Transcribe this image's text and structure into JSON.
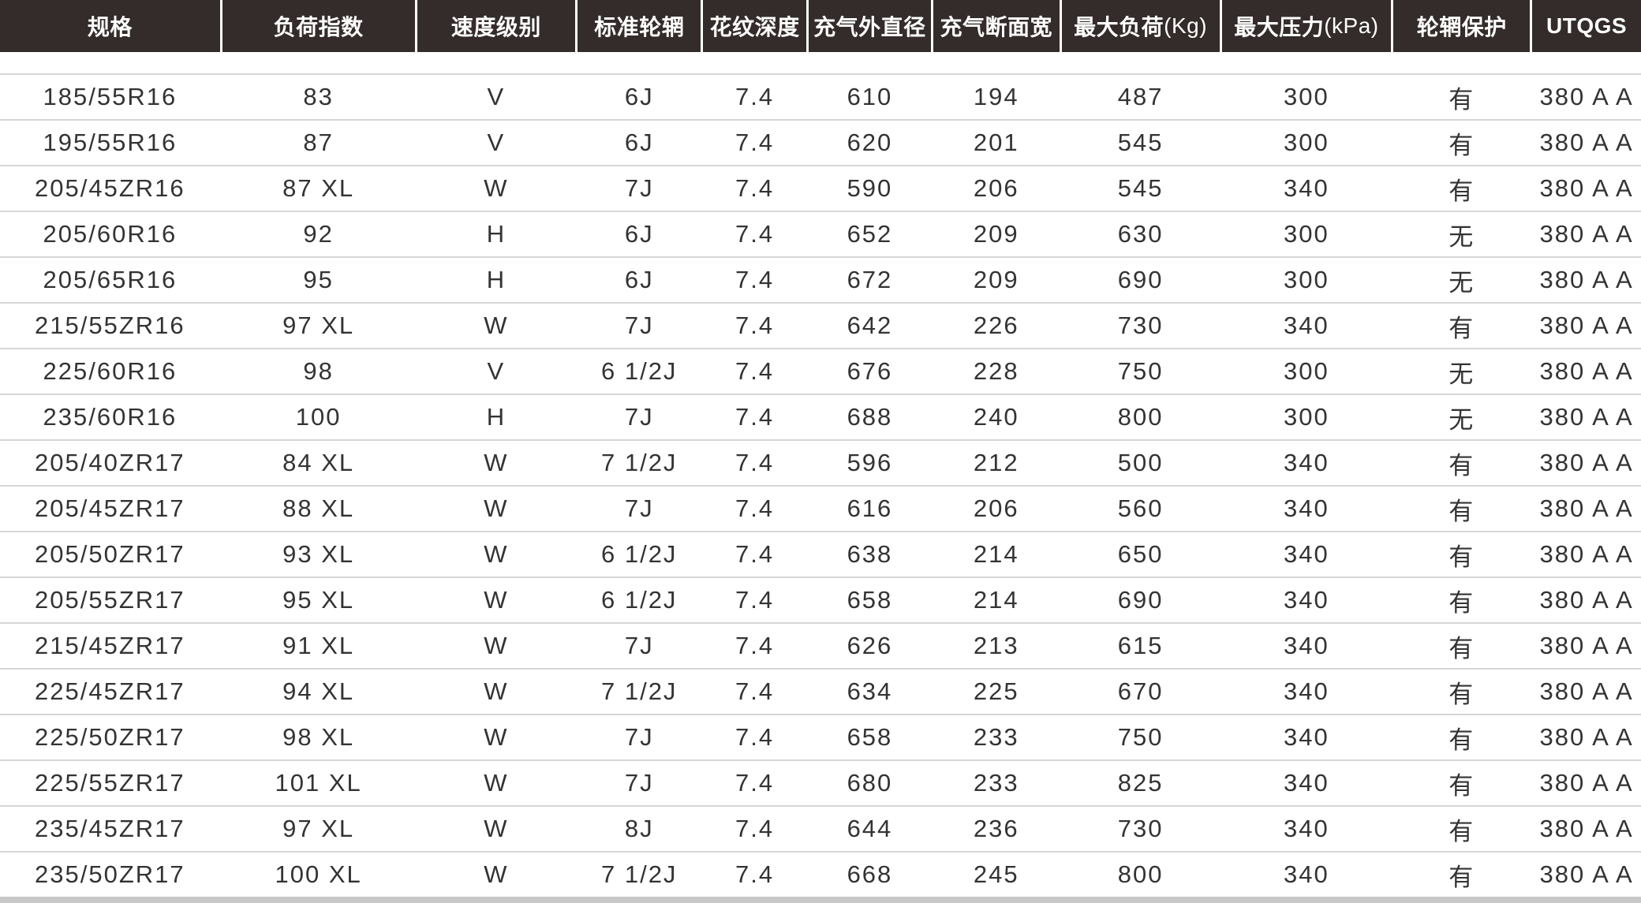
{
  "columns": [
    {
      "label": "规格",
      "unit": ""
    },
    {
      "label": "负荷指数",
      "unit": ""
    },
    {
      "label": "速度级别",
      "unit": ""
    },
    {
      "label": "标准轮辋",
      "unit": ""
    },
    {
      "label": "花纹深度",
      "unit": ""
    },
    {
      "label": "充气外直径",
      "unit": ""
    },
    {
      "label": "充气断面宽",
      "unit": ""
    },
    {
      "label": "最大负荷",
      "unit": "(Kg)"
    },
    {
      "label": "最大压力",
      "unit": "(kPa)"
    },
    {
      "label": "轮辋保护",
      "unit": ""
    },
    {
      "label": "UTQGS",
      "unit": ""
    }
  ],
  "colors": {
    "header_bg": "#332c2a",
    "header_text": "#ffffff",
    "body_text": "#333333",
    "row_divider": "#d6d6d6"
  },
  "rows": [
    [
      "185/55R16",
      "83",
      "V",
      "6J",
      "7.4",
      "610",
      "194",
      "487",
      "300",
      "有",
      "380 A A"
    ],
    [
      "195/55R16",
      "87",
      "V",
      "6J",
      "7.4",
      "620",
      "201",
      "545",
      "300",
      "有",
      "380 A A"
    ],
    [
      "205/45ZR16",
      "87 XL",
      "W",
      "7J",
      "7.4",
      "590",
      "206",
      "545",
      "340",
      "有",
      "380 A A"
    ],
    [
      "205/60R16",
      "92",
      "H",
      "6J",
      "7.4",
      "652",
      "209",
      "630",
      "300",
      "无",
      "380 A A"
    ],
    [
      "205/65R16",
      "95",
      "H",
      "6J",
      "7.4",
      "672",
      "209",
      "690",
      "300",
      "无",
      "380 A A"
    ],
    [
      "215/55ZR16",
      "97 XL",
      "W",
      "7J",
      "7.4",
      "642",
      "226",
      "730",
      "340",
      "有",
      "380 A A"
    ],
    [
      "225/60R16",
      "98",
      "V",
      "6 1/2J",
      "7.4",
      "676",
      "228",
      "750",
      "300",
      "无",
      "380 A A"
    ],
    [
      "235/60R16",
      "100",
      "H",
      "7J",
      "7.4",
      "688",
      "240",
      "800",
      "300",
      "无",
      "380 A A"
    ],
    [
      "205/40ZR17",
      "84 XL",
      "W",
      "7 1/2J",
      "7.4",
      "596",
      "212",
      "500",
      "340",
      "有",
      "380 A A"
    ],
    [
      "205/45ZR17",
      "88 XL",
      "W",
      "7J",
      "7.4",
      "616",
      "206",
      "560",
      "340",
      "有",
      "380 A A"
    ],
    [
      "205/50ZR17",
      "93 XL",
      "W",
      "6 1/2J",
      "7.4",
      "638",
      "214",
      "650",
      "340",
      "有",
      "380 A A"
    ],
    [
      "205/55ZR17",
      "95 XL",
      "W",
      "6 1/2J",
      "7.4",
      "658",
      "214",
      "690",
      "340",
      "有",
      "380 A A"
    ],
    [
      "215/45ZR17",
      "91 XL",
      "W",
      "7J",
      "7.4",
      "626",
      "213",
      "615",
      "340",
      "有",
      "380 A A"
    ],
    [
      "225/45ZR17",
      "94 XL",
      "W",
      "7 1/2J",
      "7.4",
      "634",
      "225",
      "670",
      "340",
      "有",
      "380 A A"
    ],
    [
      "225/50ZR17",
      "98 XL",
      "W",
      "7J",
      "7.4",
      "658",
      "233",
      "750",
      "340",
      "有",
      "380 A A"
    ],
    [
      "225/55ZR17",
      "101 XL",
      "W",
      "7J",
      "7.4",
      "680",
      "233",
      "825",
      "340",
      "有",
      "380 A A"
    ],
    [
      "235/45ZR17",
      "97 XL",
      "W",
      "8J",
      "7.4",
      "644",
      "236",
      "730",
      "340",
      "有",
      "380 A A"
    ],
    [
      "235/50ZR17",
      "100 XL",
      "W",
      "7 1/2J",
      "7.4",
      "668",
      "245",
      "800",
      "340",
      "有",
      "380 A A"
    ]
  ]
}
